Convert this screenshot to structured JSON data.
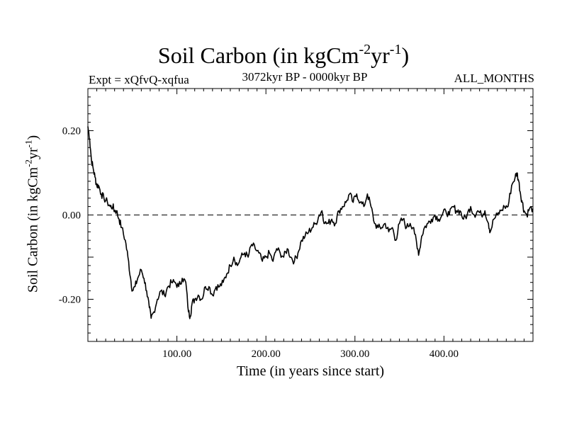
{
  "chart_data": {
    "type": "line",
    "title": {
      "main": "Soil Carbon (in kgCm",
      "sup1": "-2",
      "mid": "yr",
      "sup2": "-1",
      "end": ")"
    },
    "subtitle_left": "Expt = xQfvQ-xqfua",
    "subtitle_center": "3072kyr BP - 0000kyr BP",
    "subtitle_right": "ALL_MONTHS",
    "xlabel": "Time (in years since start)",
    "ylabel": {
      "main": "Soil Carbon (in kgCm",
      "sup1": "-2",
      "mid": "yr",
      "sup2": "-1",
      "end": ")"
    },
    "xlim": [
      0,
      500
    ],
    "ylim": [
      -0.3,
      0.3
    ],
    "x_ticks": [
      100,
      200,
      300,
      400
    ],
    "x_tick_labels": [
      "100.00",
      "200.00",
      "300.00",
      "400.00"
    ],
    "y_ticks": [
      -0.2,
      0.0,
      0.2
    ],
    "y_tick_labels": [
      "-0.20",
      "0.00",
      "0.20"
    ],
    "reference_line": {
      "y": 0.0,
      "style": "dashed"
    },
    "series": [
      {
        "name": "Soil Carbon",
        "points": [
          [
            0,
            0.21
          ],
          [
            2,
            0.18
          ],
          [
            4,
            0.13
          ],
          [
            6,
            0.11
          ],
          [
            8,
            0.09
          ],
          [
            10,
            0.07
          ],
          [
            12,
            0.07
          ],
          [
            15,
            0.05
          ],
          [
            18,
            0.04
          ],
          [
            22,
            0.03
          ],
          [
            25,
            0.02
          ],
          [
            28,
            0.02
          ],
          [
            30,
            0.01
          ],
          [
            32,
            0.01
          ],
          [
            35,
            -0.01
          ],
          [
            38,
            -0.03
          ],
          [
            42,
            -0.06
          ],
          [
            45,
            -0.1
          ],
          [
            48,
            -0.15
          ],
          [
            50,
            -0.18
          ],
          [
            53,
            -0.17
          ],
          [
            56,
            -0.15
          ],
          [
            60,
            -0.13
          ],
          [
            63,
            -0.15
          ],
          [
            66,
            -0.18
          ],
          [
            69,
            -0.22
          ],
          [
            71,
            -0.245
          ],
          [
            74,
            -0.23
          ],
          [
            78,
            -0.2
          ],
          [
            82,
            -0.18
          ],
          [
            86,
            -0.19
          ],
          [
            90,
            -0.17
          ],
          [
            94,
            -0.16
          ],
          [
            98,
            -0.16
          ],
          [
            102,
            -0.17
          ],
          [
            106,
            -0.15
          ],
          [
            110,
            -0.16
          ],
          [
            113,
            -0.23
          ],
          [
            115,
            -0.24
          ],
          [
            117,
            -0.21
          ],
          [
            120,
            -0.2
          ],
          [
            124,
            -0.19
          ],
          [
            128,
            -0.2
          ],
          [
            132,
            -0.17
          ],
          [
            136,
            -0.17
          ],
          [
            140,
            -0.19
          ],
          [
            144,
            -0.17
          ],
          [
            148,
            -0.17
          ],
          [
            152,
            -0.16
          ],
          [
            156,
            -0.14
          ],
          [
            160,
            -0.12
          ],
          [
            164,
            -0.1
          ],
          [
            168,
            -0.12
          ],
          [
            172,
            -0.1
          ],
          [
            176,
            -0.09
          ],
          [
            180,
            -0.1
          ],
          [
            184,
            -0.07
          ],
          [
            188,
            -0.08
          ],
          [
            192,
            -0.09
          ],
          [
            196,
            -0.11
          ],
          [
            200,
            -0.1
          ],
          [
            204,
            -0.09
          ],
          [
            208,
            -0.11
          ],
          [
            212,
            -0.08
          ],
          [
            216,
            -0.09
          ],
          [
            220,
            -0.1
          ],
          [
            224,
            -0.08
          ],
          [
            228,
            -0.1
          ],
          [
            232,
            -0.11
          ],
          [
            236,
            -0.09
          ],
          [
            240,
            -0.06
          ],
          [
            244,
            -0.05
          ],
          [
            248,
            -0.04
          ],
          [
            252,
            -0.03
          ],
          [
            256,
            -0.02
          ],
          [
            260,
            0.0
          ],
          [
            263,
            0.01
          ],
          [
            266,
            -0.02
          ],
          [
            270,
            -0.02
          ],
          [
            274,
            -0.01
          ],
          [
            278,
            -0.02
          ],
          [
            282,
            0.01
          ],
          [
            286,
            0.02
          ],
          [
            290,
            0.03
          ],
          [
            294,
            0.05
          ],
          [
            298,
            0.03
          ],
          [
            302,
            0.05
          ],
          [
            306,
            0.03
          ],
          [
            310,
            0.02
          ],
          [
            314,
            0.05
          ],
          [
            318,
            0.02
          ],
          [
            322,
            -0.02
          ],
          [
            326,
            -0.03
          ],
          [
            330,
            -0.03
          ],
          [
            334,
            -0.02
          ],
          [
            338,
            -0.04
          ],
          [
            342,
            -0.03
          ],
          [
            346,
            -0.06
          ],
          [
            350,
            -0.02
          ],
          [
            354,
            -0.01
          ],
          [
            358,
            -0.03
          ],
          [
            362,
            -0.02
          ],
          [
            366,
            -0.03
          ],
          [
            370,
            -0.08
          ],
          [
            372,
            -0.09
          ],
          [
            375,
            -0.05
          ],
          [
            378,
            -0.03
          ],
          [
            382,
            -0.02
          ],
          [
            386,
            -0.01
          ],
          [
            390,
            0.0
          ],
          [
            394,
            -0.01
          ],
          [
            398,
            0.0
          ],
          [
            402,
            0.01
          ],
          [
            406,
            0.0
          ],
          [
            410,
            0.02
          ],
          [
            414,
            0.01
          ],
          [
            418,
            0.01
          ],
          [
            422,
            -0.01
          ],
          [
            426,
            0.0
          ],
          [
            430,
            0.02
          ],
          [
            434,
            0.0
          ],
          [
            438,
            0.01
          ],
          [
            442,
            0.0
          ],
          [
            446,
            0.01
          ],
          [
            450,
            -0.02
          ],
          [
            452,
            -0.04
          ],
          [
            456,
            -0.01
          ],
          [
            460,
            0.0
          ],
          [
            464,
            0.01
          ],
          [
            468,
            0.02
          ],
          [
            472,
            0.02
          ],
          [
            476,
            0.07
          ],
          [
            480,
            0.09
          ],
          [
            482,
            0.1
          ],
          [
            484,
            0.08
          ],
          [
            486,
            0.05
          ],
          [
            488,
            0.03
          ],
          [
            490,
            0.01
          ],
          [
            493,
            0.0
          ],
          [
            496,
            0.015
          ],
          [
            500,
            0.015
          ]
        ]
      }
    ]
  }
}
